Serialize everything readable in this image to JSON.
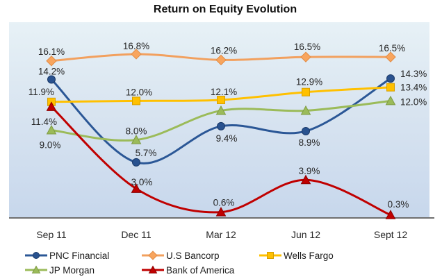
{
  "title": "Return on Equity Evolution",
  "chart_data": {
    "type": "line",
    "title": "Return on Equity Evolution",
    "categories": [
      "Sep 11",
      "Dec 11",
      "Mar 12",
      "Jun 12",
      "Sept 12"
    ],
    "ylim": [
      0,
      20
    ],
    "grid": false,
    "y_axis_visible": false,
    "legend_position": "bottom",
    "smooth_lines": true,
    "plot_bg_gradient": [
      "#E7F1F6",
      "#D7E3F0",
      "#C7D7EC"
    ],
    "axis_color": "#6F6F6F",
    "label_color": "#262626",
    "series": [
      {
        "name": "PNC Financial",
        "marker": "circle",
        "color": "#2B5796",
        "fill": "#29528F",
        "edge": "#1B3A69",
        "values": [
          14.2,
          5.7,
          9.4,
          8.9,
          14.3
        ],
        "labels": [
          "14.2%",
          "5.7%",
          "9.4%",
          "8.9%",
          "14.3%"
        ],
        "label_offsets": [
          [
            0,
            -7,
            "middle"
          ],
          [
            14,
            -9,
            "middle"
          ],
          [
            8,
            22,
            "middle"
          ],
          [
            5,
            21,
            "middle"
          ],
          [
            14,
            -2,
            "start"
          ]
        ]
      },
      {
        "name": "U.S Bancorp",
        "marker": "diamond",
        "color": "#F2A05E",
        "fill": "#F8A55E",
        "edge": "#E28C45",
        "values": [
          16.1,
          16.8,
          16.2,
          16.5,
          16.5
        ],
        "labels": [
          "16.1%",
          "16.8%",
          "16.2%",
          "16.5%",
          "16.5%"
        ],
        "label_offsets": [
          [
            0,
            -9,
            "middle"
          ],
          [
            0,
            -7,
            "middle"
          ],
          [
            4,
            -9,
            "middle"
          ],
          [
            2,
            -10,
            "middle"
          ],
          [
            2,
            -8,
            "middle"
          ]
        ]
      },
      {
        "name": "Wells Fargo",
        "marker": "square",
        "color": "#FFC000",
        "fill": "#FFC000",
        "edge": "#D69F00",
        "values": [
          11.9,
          12.0,
          12.1,
          12.9,
          13.4
        ],
        "labels": [
          "11.9%",
          "12.0%",
          "12.1%",
          "12.9%",
          "13.4%"
        ],
        "label_offsets": [
          [
            4,
            -10,
            "end"
          ],
          [
            4,
            -8,
            "middle"
          ],
          [
            4,
            -7,
            "middle"
          ],
          [
            5,
            -10,
            "middle"
          ],
          [
            14,
            5,
            "start"
          ]
        ]
      },
      {
        "name": "JP Morgan",
        "marker": "triangle",
        "color": "#9BBB59",
        "fill": "#9BBB59",
        "edge": "#7E9B44",
        "values": [
          9.0,
          8.0,
          11.0,
          11.0,
          12.0
        ],
        "labels": [
          "9.0%",
          "8.0%",
          "",
          "",
          "12.0%"
        ],
        "label_offsets": [
          [
            -2,
            26,
            "middle"
          ],
          [
            0,
            -8,
            "middle"
          ],
          [
            0,
            0,
            "middle"
          ],
          [
            0,
            0,
            "middle"
          ],
          [
            14,
            6,
            "start"
          ]
        ]
      },
      {
        "name": "Bank of America",
        "marker": "triangle",
        "color": "#C00000",
        "fill": "#C00000",
        "edge": "#8B0000",
        "values": [
          11.4,
          3.0,
          0.6,
          3.9,
          0.3
        ],
        "labels": [
          "11.4%",
          "3.0%",
          "0.6%",
          "3.9%",
          "0.3%"
        ],
        "label_offsets": [
          [
            8,
            26,
            "end"
          ],
          [
            8,
            -5,
            "middle"
          ],
          [
            4,
            -9,
            "middle"
          ],
          [
            5,
            -8,
            "middle"
          ],
          [
            11,
            -11,
            "middle"
          ]
        ]
      }
    ]
  }
}
